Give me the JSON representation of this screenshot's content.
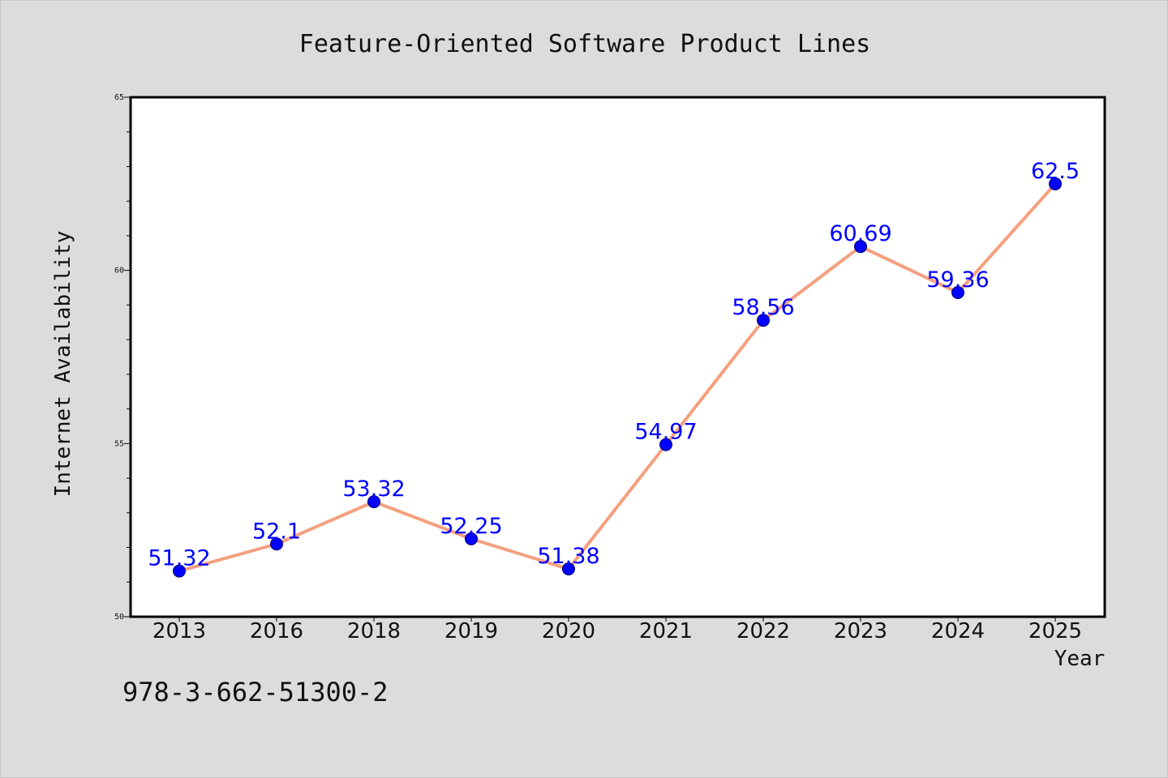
{
  "chart_data": {
    "type": "line",
    "title": "Feature-Oriented Software Product Lines",
    "xlabel": "Year",
    "ylabel": "Internet Availability",
    "categories": [
      "2013",
      "2016",
      "2018",
      "2019",
      "2020",
      "2021",
      "2022",
      "2023",
      "2024",
      "2025"
    ],
    "series": [
      {
        "values": [
          51.32,
          52.1,
          53.32,
          52.25,
          51.38,
          54.97,
          58.56,
          60.69,
          59.36,
          62.5
        ],
        "line_color": "#f4a07f",
        "marker_color": "#0000ff"
      }
    ],
    "data_labels": [
      "51.32",
      "52.1",
      "53.32",
      "52.25",
      "51.38",
      "54.97",
      "58.56",
      "60.69",
      "59.36",
      "62.5"
    ],
    "ylim": [
      50,
      65
    ],
    "y_ticks": [
      50,
      55,
      60,
      65
    ],
    "y_tick_labels": [
      "50",
      "55",
      "60",
      "65"
    ],
    "y_minor_step": 1,
    "grid": false,
    "legend": "none",
    "plot_background": "#ffffff",
    "figure_background": "#dcdcdc"
  },
  "footer": {
    "isbn": "978-3-662-51300-2"
  }
}
